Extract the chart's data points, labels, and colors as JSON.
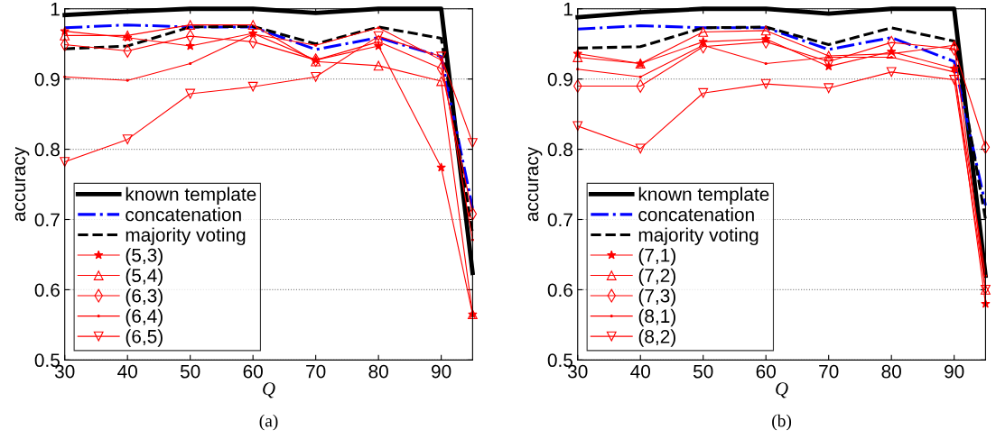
{
  "chart_data": [
    {
      "type": "line",
      "xlabel": "Q",
      "ylabel": "accuracy",
      "annotations": [
        "(a)"
      ],
      "x": [
        30,
        40,
        50,
        60,
        70,
        80,
        90,
        95
      ],
      "xlim": [
        30,
        95
      ],
      "xticks": [
        30,
        40,
        50,
        60,
        70,
        80,
        90
      ],
      "ylim": [
        0.5,
        1
      ],
      "yticks": [
        0.5,
        0.6,
        0.7,
        0.8,
        0.9,
        1
      ],
      "grid": "y",
      "legend": "bottom left",
      "series": [
        {
          "name": "known template",
          "color": "#000000",
          "line_style": "solid",
          "marker": "none",
          "values": [
            0.991,
            0.996,
            1.0,
            1.0,
            0.994,
            1.0,
            1.0,
            0.624
          ]
        },
        {
          "name": "concatenation",
          "color": "#0000ff",
          "line_style": "dashdot",
          "marker": "none",
          "values": [
            0.973,
            0.977,
            0.974,
            0.974,
            0.942,
            0.959,
            0.932,
            0.716
          ]
        },
        {
          "name": "majority voting",
          "color": "#000000",
          "line_style": "dashed",
          "marker": "none",
          "values": [
            0.943,
            0.947,
            0.974,
            0.975,
            0.95,
            0.974,
            0.958,
            0.68
          ]
        },
        {
          "name": "(5,3)",
          "color": "#ff0000",
          "line_style": "solid",
          "marker": "star",
          "values": [
            0.968,
            0.959,
            0.947,
            0.965,
            0.927,
            0.947,
            0.774,
            0.565
          ]
        },
        {
          "name": "(5,4)",
          "color": "#ff0000",
          "line_style": "solid",
          "marker": "triangle",
          "values": [
            0.962,
            0.962,
            0.977,
            0.977,
            0.925,
            0.919,
            0.897,
            0.565
          ]
        },
        {
          "name": "(6,3)",
          "color": "#ff0000",
          "line_style": "solid",
          "marker": "diamond",
          "values": [
            0.949,
            0.94,
            0.961,
            0.953,
            0.927,
            0.953,
            0.915,
            0.708
          ]
        },
        {
          "name": "(6,4)",
          "color": "#ff0000",
          "line_style": "solid",
          "marker": "point",
          "values": [
            0.903,
            0.898,
            0.922,
            0.964,
            0.948,
            0.973,
            0.927,
            0.671
          ]
        },
        {
          "name": "(6,5)",
          "color": "#ff0000",
          "line_style": "solid",
          "marker": "triangle_down",
          "values": [
            0.782,
            0.814,
            0.879,
            0.889,
            0.903,
            0.961,
            0.932,
            0.809
          ]
        }
      ]
    },
    {
      "type": "line",
      "xlabel": "Q",
      "ylabel": "accuracy",
      "annotations": [
        "(b)"
      ],
      "x": [
        30,
        40,
        50,
        60,
        70,
        80,
        90,
        95
      ],
      "xlim": [
        30,
        95
      ],
      "xticks": [
        30,
        40,
        50,
        60,
        70,
        80,
        90
      ],
      "ylim": [
        0.5,
        1
      ],
      "yticks": [
        0.5,
        0.6,
        0.7,
        0.8,
        0.9,
        1
      ],
      "grid": "y",
      "legend": "bottom left",
      "series": [
        {
          "name": "known template",
          "color": "#000000",
          "line_style": "solid",
          "marker": "none",
          "values": [
            0.988,
            0.995,
            1.0,
            1.0,
            0.993,
            1.0,
            1.0,
            0.62
          ]
        },
        {
          "name": "concatenation",
          "color": "#0000ff",
          "line_style": "dashdot",
          "marker": "none",
          "values": [
            0.971,
            0.976,
            0.973,
            0.973,
            0.942,
            0.959,
            0.925,
            0.72
          ]
        },
        {
          "name": "majority voting",
          "color": "#000000",
          "line_style": "dashed",
          "marker": "none",
          "values": [
            0.944,
            0.946,
            0.973,
            0.974,
            0.949,
            0.973,
            0.954,
            0.7
          ]
        },
        {
          "name": "(7,1)",
          "color": "#ff0000",
          "line_style": "solid",
          "marker": "star",
          "values": [
            0.936,
            0.922,
            0.953,
            0.957,
            0.918,
            0.939,
            0.915,
            0.58
          ]
        },
        {
          "name": "(7,2)",
          "color": "#ff0000",
          "line_style": "solid",
          "marker": "triangle",
          "values": [
            0.931,
            0.922,
            0.967,
            0.969,
            0.933,
            0.936,
            0.948,
            0.6
          ]
        },
        {
          "name": "(7,3)",
          "color": "#ff0000",
          "line_style": "solid",
          "marker": "diamond",
          "values": [
            0.89,
            0.89,
            0.946,
            0.953,
            0.925,
            0.952,
            0.943,
            0.803
          ]
        },
        {
          "name": "(8,1)",
          "color": "#ff0000",
          "line_style": "solid",
          "marker": "point",
          "values": [
            0.914,
            0.903,
            0.948,
            0.922,
            0.931,
            0.931,
            0.91,
            0.62
          ]
        },
        {
          "name": "(8,2)",
          "color": "#ff0000",
          "line_style": "solid",
          "marker": "triangle_down",
          "values": [
            0.833,
            0.801,
            0.88,
            0.893,
            0.887,
            0.91,
            0.899,
            0.6
          ]
        }
      ]
    }
  ]
}
